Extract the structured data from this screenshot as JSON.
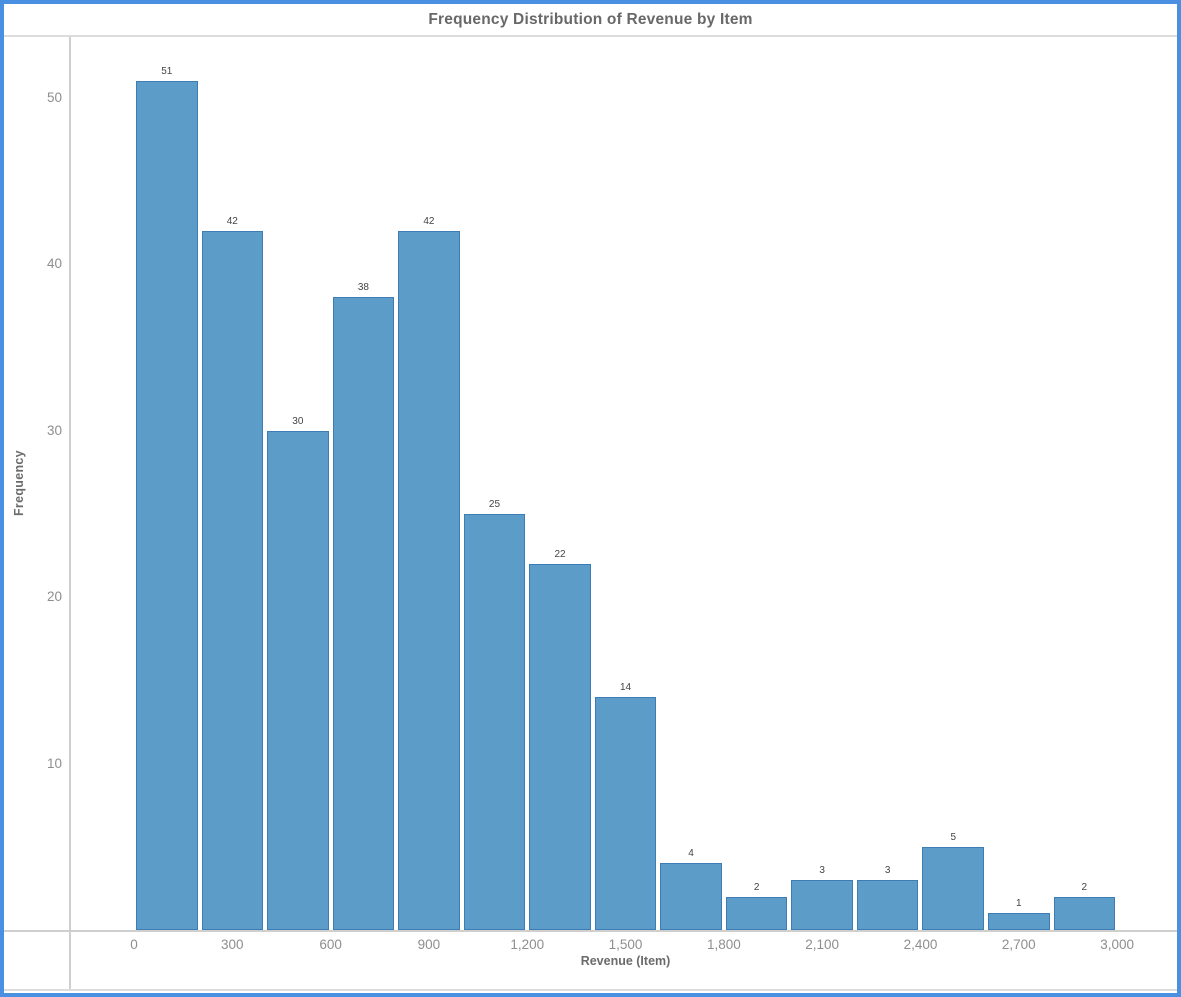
{
  "page": {
    "title": "Frequency Distribution of Revenue by Item"
  },
  "colors": {
    "page_border": "#4a90e2",
    "bar_fill": "#5b9cc9",
    "bar_stroke": "#3d7cb5",
    "axis_line": "#cfcfcf"
  },
  "chart_data": {
    "type": "bar",
    "title": "Frequency Distribution of Revenue by Item",
    "xlabel": "Revenue (Item)",
    "ylabel": "Frequency",
    "bin_width": 200,
    "bin_starts": [
      0,
      200,
      400,
      600,
      800,
      1000,
      1200,
      1400,
      1600,
      1800,
      2000,
      2200,
      2400,
      2600,
      2800
    ],
    "values": [
      51,
      42,
      30,
      38,
      42,
      25,
      22,
      14,
      4,
      2,
      3,
      3,
      5,
      1,
      2
    ],
    "x_tick_values": [
      0,
      300,
      600,
      900,
      1200,
      1500,
      1800,
      2100,
      2400,
      2700,
      3000
    ],
    "x_tick_labels": [
      "0",
      "300",
      "600",
      "900",
      "1,200",
      "1,500",
      "1,800",
      "2,100",
      "2,400",
      "2,700",
      "3,000"
    ],
    "y_ticks": [
      10,
      20,
      30,
      40,
      50
    ],
    "xlim": [
      -200,
      3185
    ],
    "ylim": [
      0,
      53.6
    ],
    "grid": false,
    "legend": false,
    "bar_value_labels_shown": true
  }
}
